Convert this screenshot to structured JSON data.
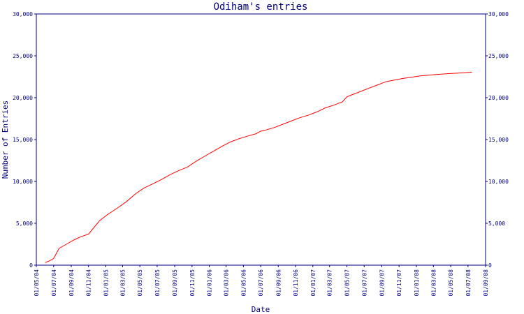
{
  "chart_data": {
    "type": "line",
    "title": "Odiham's entries",
    "xlabel": "Date",
    "ylabel": "Number of Entries",
    "x_range": [
      "2004-05-01",
      "2008-09-01"
    ],
    "ylim": [
      0,
      30000
    ],
    "y_ticks": [
      0,
      5000,
      10000,
      15000,
      20000,
      25000,
      30000
    ],
    "y_tick_labels": [
      "0",
      "5,000",
      "10,000",
      "15,000",
      "20,000",
      "25,000",
      "30,000"
    ],
    "x_ticks": [
      "2004-05-01",
      "2004-07-01",
      "2004-09-01",
      "2004-11-01",
      "2005-01-01",
      "2005-03-01",
      "2005-05-01",
      "2005-07-01",
      "2005-09-01",
      "2005-11-01",
      "2006-01-01",
      "2006-03-01",
      "2006-05-01",
      "2006-07-01",
      "2006-09-01",
      "2006-11-01",
      "2007-01-01",
      "2007-03-01",
      "2007-05-01",
      "2007-07-01",
      "2007-09-01",
      "2007-11-01",
      "2008-01-01",
      "2008-03-01",
      "2008-05-01",
      "2008-07-01",
      "2008-09-01"
    ],
    "x_tick_labels": [
      "01/05/04",
      "01/07/04",
      "01/09/04",
      "01/11/04",
      "01/01/05",
      "01/03/05",
      "01/05/05",
      "01/07/05",
      "01/09/05",
      "01/11/05",
      "01/01/06",
      "01/03/06",
      "01/05/06",
      "01/07/06",
      "01/09/06",
      "01/11/06",
      "01/01/07",
      "01/03/07",
      "01/05/07",
      "01/07/07",
      "01/09/07",
      "01/11/07",
      "01/01/08",
      "01/03/08",
      "01/05/08",
      "01/07/08",
      "01/09/08"
    ],
    "grid": false,
    "series": [
      {
        "color": "#ff0000",
        "x": [
          "2004-06-01",
          "2004-06-15",
          "2004-07-01",
          "2004-07-20",
          "2004-08-15",
          "2004-09-10",
          "2004-10-05",
          "2004-11-01",
          "2004-11-20",
          "2004-12-10",
          "2005-01-05",
          "2005-02-10",
          "2005-03-15",
          "2005-04-15",
          "2005-05-15",
          "2005-06-15",
          "2005-07-15",
          "2005-08-15",
          "2005-09-15",
          "2005-10-15",
          "2005-11-15",
          "2005-12-15",
          "2006-01-15",
          "2006-02-15",
          "2006-03-15",
          "2006-04-15",
          "2006-05-15",
          "2006-06-15",
          "2006-07-01",
          "2006-07-15",
          "2006-08-15",
          "2006-09-15",
          "2006-10-15",
          "2006-11-15",
          "2006-12-15",
          "2007-01-15",
          "2007-02-15",
          "2007-03-15",
          "2007-04-15",
          "2007-05-01",
          "2007-05-15",
          "2007-06-15",
          "2007-07-15",
          "2007-08-15",
          "2007-09-15",
          "2007-10-15",
          "2007-11-15",
          "2007-12-15",
          "2008-01-15",
          "2008-02-15",
          "2008-03-15",
          "2008-04-15",
          "2008-05-15",
          "2008-06-15",
          "2008-07-15"
        ],
        "y": [
          300,
          500,
          800,
          2000,
          2500,
          3000,
          3400,
          3700,
          4500,
          5300,
          6000,
          6800,
          7600,
          8500,
          9200,
          9700,
          10200,
          10800,
          11300,
          11700,
          12400,
          13000,
          13600,
          14200,
          14700,
          15100,
          15400,
          15700,
          16000,
          16100,
          16400,
          16800,
          17200,
          17600,
          17900,
          18300,
          18800,
          19100,
          19500,
          20100,
          20300,
          20700,
          21100,
          21500,
          21900,
          22100,
          22300,
          22450,
          22600,
          22700,
          22780,
          22850,
          22920,
          22980,
          23050
        ]
      }
    ]
  }
}
